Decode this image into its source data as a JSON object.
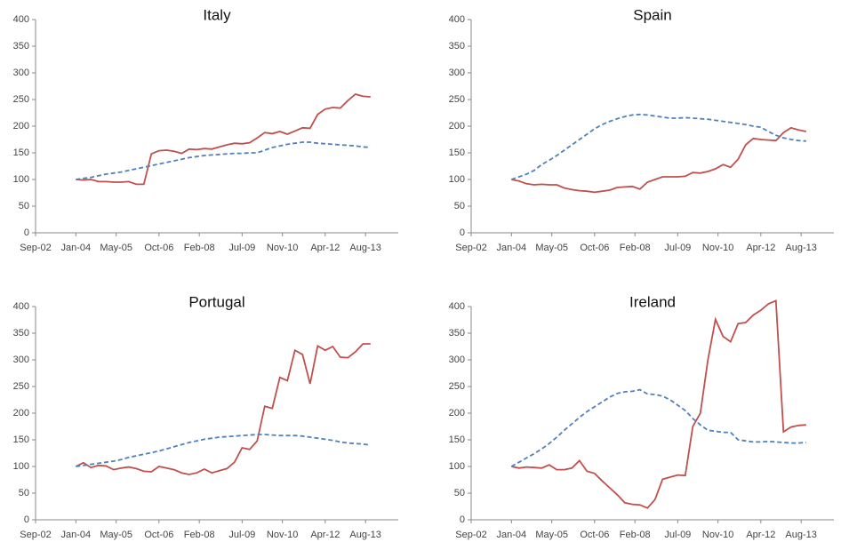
{
  "chart_data": [
    {
      "type": "line",
      "title": "Italy",
      "x": [
        "Jan-04",
        "Apr-04",
        "Jul-04",
        "Oct-04",
        "Jan-05",
        "Apr-05",
        "Jul-05",
        "Oct-05",
        "Jan-06",
        "Apr-06",
        "Jul-06",
        "Oct-06",
        "Jan-07",
        "Apr-07",
        "Jul-07",
        "Oct-07",
        "Jan-08",
        "Apr-08",
        "Jul-08",
        "Oct-08",
        "Jan-09",
        "Apr-09",
        "Jul-09",
        "Oct-09",
        "Jan-10",
        "Apr-10",
        "Jul-10",
        "Oct-10",
        "Jan-11",
        "Apr-11",
        "Jul-11",
        "Oct-11",
        "Jan-12",
        "Apr-12",
        "Jul-12",
        "Oct-12",
        "Jan-13",
        "Apr-13",
        "Jul-13",
        "Oct-13"
      ],
      "series": [
        {
          "color": "#c0504d",
          "style": "solid",
          "values": [
            100,
            99,
            100,
            96,
            96,
            95,
            95,
            96,
            91,
            91,
            148,
            154,
            155,
            153,
            149,
            157,
            156,
            158,
            157,
            161,
            165,
            168,
            167,
            169,
            178,
            188,
            186,
            190,
            185,
            191,
            197,
            196,
            222,
            232,
            235,
            234,
            248,
            260,
            256,
            255
          ]
        },
        {
          "color": "#4f81bd",
          "style": "dashed",
          "values": [
            100,
            102,
            104,
            107,
            110,
            112,
            114,
            117,
            120,
            123,
            126,
            129,
            132,
            135,
            138,
            141,
            143,
            145,
            146,
            147,
            148,
            149,
            149,
            150,
            150,
            155,
            160,
            163,
            166,
            168,
            170,
            170,
            168,
            167,
            166,
            165,
            164,
            163,
            161,
            160
          ]
        }
      ],
      "xlim": [
        "Sep-02",
        "Sep-14"
      ],
      "xticks": [
        "Sep-02",
        "Jan-04",
        "May-05",
        "Oct-06",
        "Feb-08",
        "Jul-09",
        "Nov-10",
        "Apr-12",
        "Aug-13"
      ],
      "ylim": [
        0,
        400
      ],
      "yticks": [
        0,
        50,
        100,
        150,
        200,
        250,
        300,
        350,
        400
      ],
      "grid": false
    },
    {
      "type": "line",
      "title": "Spain",
      "x": [
        "Jan-04",
        "Apr-04",
        "Jul-04",
        "Oct-04",
        "Jan-05",
        "Apr-05",
        "Jul-05",
        "Oct-05",
        "Jan-06",
        "Apr-06",
        "Jul-06",
        "Oct-06",
        "Jan-07",
        "Apr-07",
        "Jul-07",
        "Oct-07",
        "Jan-08",
        "Apr-08",
        "Jul-08",
        "Oct-08",
        "Jan-09",
        "Apr-09",
        "Jul-09",
        "Oct-09",
        "Jan-10",
        "Apr-10",
        "Jul-10",
        "Oct-10",
        "Jan-11",
        "Apr-11",
        "Jul-11",
        "Oct-11",
        "Jan-12",
        "Apr-12",
        "Jul-12",
        "Oct-12",
        "Jan-13",
        "Apr-13",
        "Jul-13",
        "Oct-13"
      ],
      "series": [
        {
          "color": "#c0504d",
          "style": "solid",
          "values": [
            100,
            97,
            92,
            90,
            91,
            90,
            90,
            84,
            81,
            79,
            78,
            76,
            78,
            80,
            85,
            86,
            87,
            82,
            95,
            100,
            105,
            105,
            105,
            106,
            113,
            112,
            115,
            120,
            128,
            123,
            138,
            165,
            177,
            175,
            174,
            173,
            188,
            197,
            193,
            190
          ]
        },
        {
          "color": "#4f81bd",
          "style": "dashed",
          "values": [
            100,
            105,
            110,
            117,
            128,
            136,
            145,
            155,
            165,
            175,
            185,
            195,
            203,
            209,
            214,
            218,
            221,
            222,
            221,
            219,
            217,
            215,
            215,
            216,
            215,
            214,
            213,
            211,
            209,
            207,
            205,
            203,
            200,
            198,
            190,
            183,
            178,
            175,
            173,
            172
          ]
        }
      ],
      "xlim": [
        "Sep-02",
        "Sep-14"
      ],
      "xticks": [
        "Sep-02",
        "Jan-04",
        "May-05",
        "Oct-06",
        "Feb-08",
        "Jul-09",
        "Nov-10",
        "Apr-12",
        "Aug-13"
      ],
      "ylim": [
        0,
        400
      ],
      "yticks": [
        0,
        50,
        100,
        150,
        200,
        250,
        300,
        350,
        400
      ],
      "grid": false
    },
    {
      "type": "line",
      "title": "Portugal",
      "x": [
        "Jan-04",
        "Apr-04",
        "Jul-04",
        "Oct-04",
        "Jan-05",
        "Apr-05",
        "Jul-05",
        "Oct-05",
        "Jan-06",
        "Apr-06",
        "Jul-06",
        "Oct-06",
        "Jan-07",
        "Apr-07",
        "Jul-07",
        "Oct-07",
        "Jan-08",
        "Apr-08",
        "Jul-08",
        "Oct-08",
        "Jan-09",
        "Apr-09",
        "Jul-09",
        "Oct-09",
        "Jan-10",
        "Apr-10",
        "Jul-10",
        "Oct-10",
        "Jan-11",
        "Apr-11",
        "Jul-11",
        "Oct-11",
        "Jan-12",
        "Apr-12",
        "Jul-12",
        "Oct-12",
        "Jan-13",
        "Apr-13",
        "Jul-13",
        "Oct-13"
      ],
      "series": [
        {
          "color": "#c0504d",
          "style": "solid",
          "values": [
            100,
            107,
            98,
            102,
            101,
            94,
            97,
            99,
            96,
            91,
            90,
            100,
            97,
            94,
            88,
            85,
            88,
            95,
            88,
            92,
            96,
            108,
            135,
            132,
            148,
            213,
            209,
            267,
            261,
            318,
            310,
            255,
            326,
            318,
            325,
            305,
            304,
            315,
            330,
            330
          ]
        },
        {
          "color": "#4f81bd",
          "style": "dashed",
          "values": [
            100,
            102,
            104,
            106,
            108,
            110,
            113,
            117,
            120,
            123,
            126,
            129,
            133,
            137,
            141,
            145,
            148,
            151,
            153,
            155,
            156,
            157,
            158,
            159,
            160,
            160,
            159,
            158,
            158,
            158,
            157,
            155,
            153,
            151,
            149,
            146,
            144,
            143,
            142,
            140
          ]
        }
      ],
      "xlim": [
        "Sep-02",
        "Sep-14"
      ],
      "xticks": [
        "Sep-02",
        "Jan-04",
        "May-05",
        "Oct-06",
        "Feb-08",
        "Jul-09",
        "Nov-10",
        "Apr-12",
        "Aug-13"
      ],
      "ylim": [
        0,
        400
      ],
      "yticks": [
        0,
        50,
        100,
        150,
        200,
        250,
        300,
        350,
        400
      ],
      "grid": false
    },
    {
      "type": "line",
      "title": "Ireland",
      "x": [
        "Jan-04",
        "Apr-04",
        "Jul-04",
        "Oct-04",
        "Jan-05",
        "Apr-05",
        "Jul-05",
        "Oct-05",
        "Jan-06",
        "Apr-06",
        "Jul-06",
        "Oct-06",
        "Jan-07",
        "Apr-07",
        "Jul-07",
        "Oct-07",
        "Jan-08",
        "Apr-08",
        "Jul-08",
        "Oct-08",
        "Jan-09",
        "Apr-09",
        "Jul-09",
        "Oct-09",
        "Jan-10",
        "Apr-10",
        "Jul-10",
        "Oct-10",
        "Jan-11",
        "Apr-11",
        "Jul-11",
        "Oct-11",
        "Jan-12",
        "Apr-12",
        "Jul-12",
        "Oct-12",
        "Jan-13",
        "Apr-13",
        "Jul-13",
        "Oct-13"
      ],
      "series": [
        {
          "color": "#c0504d",
          "style": "solid",
          "values": [
            100,
            97,
            99,
            98,
            97,
            103,
            94,
            94,
            97,
            111,
            91,
            87,
            73,
            60,
            47,
            32,
            29,
            28,
            22,
            38,
            76,
            80,
            84,
            83,
            175,
            200,
            300,
            376,
            344,
            334,
            368,
            370,
            384,
            393,
            405,
            411,
            165,
            174,
            177,
            178
          ]
        },
        {
          "color": "#4f81bd",
          "style": "dashed",
          "values": [
            100,
            108,
            116,
            124,
            133,
            143,
            155,
            168,
            180,
            192,
            203,
            212,
            221,
            230,
            237,
            240,
            241,
            244,
            236,
            235,
            232,
            225,
            215,
            205,
            190,
            178,
            168,
            166,
            164,
            164,
            150,
            148,
            146,
            146,
            147,
            146,
            145,
            144,
            144,
            145
          ]
        }
      ],
      "xlim": [
        "Sep-02",
        "Sep-14"
      ],
      "xticks": [
        "Sep-02",
        "Jan-04",
        "May-05",
        "Oct-06",
        "Feb-08",
        "Jul-09",
        "Nov-10",
        "Apr-12",
        "Aug-13"
      ],
      "ylim": [
        0,
        400
      ],
      "yticks": [
        0,
        50,
        100,
        150,
        200,
        250,
        300,
        350,
        400
      ],
      "grid": false
    }
  ]
}
